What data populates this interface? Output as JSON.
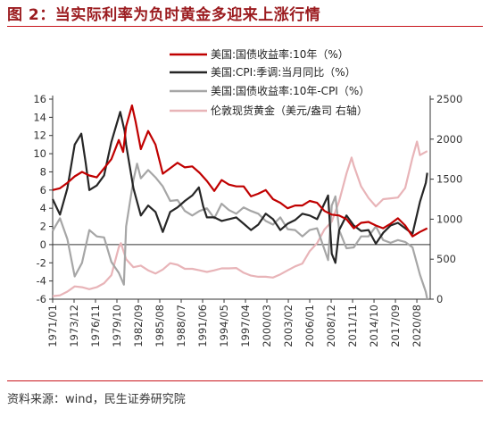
{
  "header": {
    "title": "图 2：当实际利率为负时黄金多迎来上涨行情"
  },
  "footer": {
    "source": "资料来源：wind，民生证券研究院"
  },
  "chart_data": {
    "type": "line",
    "x_tick_labels": [
      "1971/01",
      "1973/12",
      "1976/11",
      "1979/10",
      "1982/09",
      "1985/08",
      "1988/07",
      "1991/06",
      "1994/05",
      "1997/04",
      "2000/03",
      "2003/02",
      "2006/01",
      "2008/12",
      "2011/11",
      "2014/10",
      "2017/09",
      "2020/08"
    ],
    "x_range": [
      1971.0,
      2022.4
    ],
    "left_axis": {
      "ticks": [
        -6,
        -4,
        -2,
        0,
        2,
        4,
        6,
        8,
        10,
        12,
        14,
        16
      ],
      "ylim": [
        -6,
        16
      ]
    },
    "right_axis": {
      "ticks": [
        0,
        500,
        1000,
        1500,
        2000,
        2500
      ],
      "ylim": [
        0,
        2500
      ]
    },
    "legend_placement": "top",
    "series": [
      {
        "name": "美国:国债收益率:10年（%）",
        "axis": "left",
        "color": "#c00000",
        "points": [
          [
            1971.0,
            6.0
          ],
          [
            1972.0,
            6.2
          ],
          [
            1973.0,
            6.8
          ],
          [
            1974.0,
            7.5
          ],
          [
            1975.0,
            8.0
          ],
          [
            1976.0,
            7.6
          ],
          [
            1977.0,
            7.4
          ],
          [
            1978.0,
            8.4
          ],
          [
            1979.0,
            9.4
          ],
          [
            1980.0,
            11.5
          ],
          [
            1980.6,
            10.2
          ],
          [
            1981.0,
            13.0
          ],
          [
            1981.8,
            15.3
          ],
          [
            1982.3,
            13.5
          ],
          [
            1983.0,
            10.5
          ],
          [
            1984.0,
            12.5
          ],
          [
            1985.0,
            11.0
          ],
          [
            1986.0,
            7.8
          ],
          [
            1987.0,
            8.4
          ],
          [
            1988.0,
            9.0
          ],
          [
            1989.0,
            8.5
          ],
          [
            1990.0,
            8.6
          ],
          [
            1991.0,
            7.9
          ],
          [
            1992.0,
            7.0
          ],
          [
            1993.0,
            5.9
          ],
          [
            1994.0,
            7.1
          ],
          [
            1995.0,
            6.6
          ],
          [
            1996.0,
            6.4
          ],
          [
            1997.0,
            6.4
          ],
          [
            1998.0,
            5.3
          ],
          [
            1999.0,
            5.6
          ],
          [
            2000.0,
            6.0
          ],
          [
            2001.0,
            5.0
          ],
          [
            2002.0,
            4.6
          ],
          [
            2003.0,
            4.0
          ],
          [
            2004.0,
            4.3
          ],
          [
            2005.0,
            4.3
          ],
          [
            2006.0,
            4.8
          ],
          [
            2007.0,
            4.6
          ],
          [
            2008.0,
            3.7
          ],
          [
            2009.0,
            3.3
          ],
          [
            2010.0,
            3.2
          ],
          [
            2011.0,
            2.8
          ],
          [
            2012.0,
            1.8
          ],
          [
            2013.0,
            2.4
          ],
          [
            2014.0,
            2.5
          ],
          [
            2015.0,
            2.1
          ],
          [
            2016.0,
            1.8
          ],
          [
            2017.0,
            2.3
          ],
          [
            2018.0,
            2.9
          ],
          [
            2019.0,
            2.1
          ],
          [
            2020.0,
            0.9
          ],
          [
            2021.0,
            1.4
          ],
          [
            2022.0,
            1.8
          ]
        ]
      },
      {
        "name": "美国:CPI:季调:当月同比（%）",
        "axis": "left",
        "color": "#262626",
        "points": [
          [
            1971.0,
            5.0
          ],
          [
            1972.0,
            3.3
          ],
          [
            1973.0,
            6.2
          ],
          [
            1974.0,
            11.0
          ],
          [
            1974.9,
            12.2
          ],
          [
            1975.5,
            9.0
          ],
          [
            1976.0,
            6.0
          ],
          [
            1977.0,
            6.5
          ],
          [
            1978.0,
            7.6
          ],
          [
            1979.0,
            11.3
          ],
          [
            1980.2,
            14.6
          ],
          [
            1980.8,
            12.5
          ],
          [
            1981.0,
            11.0
          ],
          [
            1982.0,
            6.2
          ],
          [
            1983.0,
            3.2
          ],
          [
            1984.0,
            4.3
          ],
          [
            1985.0,
            3.6
          ],
          [
            1986.0,
            1.4
          ],
          [
            1987.0,
            3.6
          ],
          [
            1988.0,
            4.1
          ],
          [
            1989.0,
            4.8
          ],
          [
            1990.0,
            5.4
          ],
          [
            1990.9,
            6.3
          ],
          [
            1991.5,
            4.2
          ],
          [
            1992.0,
            3.0
          ],
          [
            1993.0,
            3.0
          ],
          [
            1994.0,
            2.6
          ],
          [
            1995.0,
            2.8
          ],
          [
            1996.0,
            3.0
          ],
          [
            1997.0,
            2.3
          ],
          [
            1998.0,
            1.6
          ],
          [
            1999.0,
            2.2
          ],
          [
            2000.0,
            3.4
          ],
          [
            2001.0,
            2.8
          ],
          [
            2002.0,
            1.6
          ],
          [
            2003.0,
            2.3
          ],
          [
            2004.0,
            2.7
          ],
          [
            2005.0,
            3.4
          ],
          [
            2006.0,
            3.2
          ],
          [
            2007.0,
            2.8
          ],
          [
            2008.5,
            5.4
          ],
          [
            2009.0,
            -1.0
          ],
          [
            2009.5,
            -2.0
          ],
          [
            2010.0,
            1.6
          ],
          [
            2011.0,
            3.2
          ],
          [
            2012.0,
            2.1
          ],
          [
            2013.0,
            1.5
          ],
          [
            2014.0,
            1.6
          ],
          [
            2015.0,
            0.1
          ],
          [
            2016.0,
            1.3
          ],
          [
            2017.0,
            2.1
          ],
          [
            2018.0,
            2.4
          ],
          [
            2019.0,
            1.8
          ],
          [
            2020.0,
            1.2
          ],
          [
            2021.0,
            4.7
          ],
          [
            2021.8,
            6.8
          ],
          [
            2022.0,
            7.9
          ]
        ]
      },
      {
        "name": "美国:国债收益率:10年-CPI（%）",
        "axis": "left",
        "color": "#a6a6a6",
        "points": [
          [
            1971.0,
            1.5
          ],
          [
            1972.0,
            2.9
          ],
          [
            1973.0,
            0.6
          ],
          [
            1974.0,
            -3.5
          ],
          [
            1975.0,
            -2.0
          ],
          [
            1976.0,
            1.6
          ],
          [
            1977.0,
            0.9
          ],
          [
            1978.0,
            0.8
          ],
          [
            1979.0,
            -1.9
          ],
          [
            1980.0,
            -3.1
          ],
          [
            1980.7,
            -4.4
          ],
          [
            1981.0,
            2.0
          ],
          [
            1982.0,
            7.1
          ],
          [
            1982.5,
            8.9
          ],
          [
            1983.0,
            7.3
          ],
          [
            1984.0,
            8.2
          ],
          [
            1985.0,
            7.4
          ],
          [
            1986.0,
            6.4
          ],
          [
            1987.0,
            4.8
          ],
          [
            1988.0,
            4.9
          ],
          [
            1989.0,
            3.7
          ],
          [
            1990.0,
            3.2
          ],
          [
            1991.0,
            3.7
          ],
          [
            1992.0,
            4.0
          ],
          [
            1993.0,
            2.9
          ],
          [
            1994.0,
            4.5
          ],
          [
            1995.0,
            3.8
          ],
          [
            1996.0,
            3.4
          ],
          [
            1997.0,
            4.1
          ],
          [
            1998.0,
            3.7
          ],
          [
            1999.0,
            3.4
          ],
          [
            2000.0,
            2.6
          ],
          [
            2001.0,
            2.2
          ],
          [
            2002.0,
            3.0
          ],
          [
            2003.0,
            1.7
          ],
          [
            2004.0,
            1.6
          ],
          [
            2005.0,
            0.9
          ],
          [
            2006.0,
            1.6
          ],
          [
            2007.0,
            1.8
          ],
          [
            2008.5,
            -1.7
          ],
          [
            2009.0,
            4.3
          ],
          [
            2009.5,
            5.3
          ],
          [
            2010.0,
            1.6
          ],
          [
            2011.0,
            -0.4
          ],
          [
            2012.0,
            -0.3
          ],
          [
            2013.0,
            0.9
          ],
          [
            2014.0,
            0.9
          ],
          [
            2015.0,
            2.0
          ],
          [
            2016.0,
            0.5
          ],
          [
            2017.0,
            0.2
          ],
          [
            2018.0,
            0.5
          ],
          [
            2019.0,
            0.3
          ],
          [
            2020.0,
            -0.3
          ],
          [
            2021.0,
            -3.3
          ],
          [
            2021.8,
            -5.2
          ],
          [
            2022.0,
            -6.0
          ]
        ]
      },
      {
        "name": "伦敦现货黄金（美元/盎司 右轴）",
        "axis": "right",
        "color": "#e8b4b8",
        "points": [
          [
            1971.0,
            38
          ],
          [
            1972.0,
            48
          ],
          [
            1973.0,
            95
          ],
          [
            1974.0,
            160
          ],
          [
            1975.0,
            150
          ],
          [
            1976.0,
            125
          ],
          [
            1977.0,
            150
          ],
          [
            1978.0,
            200
          ],
          [
            1979.0,
            300
          ],
          [
            1980.0,
            650
          ],
          [
            1980.3,
            700
          ],
          [
            1981.0,
            500
          ],
          [
            1982.0,
            400
          ],
          [
            1983.0,
            420
          ],
          [
            1984.0,
            360
          ],
          [
            1985.0,
            320
          ],
          [
            1986.0,
            370
          ],
          [
            1987.0,
            450
          ],
          [
            1988.0,
            430
          ],
          [
            1989.0,
            380
          ],
          [
            1990.0,
            380
          ],
          [
            1991.0,
            360
          ],
          [
            1992.0,
            340
          ],
          [
            1993.0,
            360
          ],
          [
            1994.0,
            385
          ],
          [
            1995.0,
            385
          ],
          [
            1996.0,
            390
          ],
          [
            1997.0,
            330
          ],
          [
            1998.0,
            295
          ],
          [
            1999.0,
            280
          ],
          [
            2000.0,
            280
          ],
          [
            2001.0,
            270
          ],
          [
            2002.0,
            310
          ],
          [
            2003.0,
            360
          ],
          [
            2004.0,
            410
          ],
          [
            2005.0,
            445
          ],
          [
            2006.0,
            600
          ],
          [
            2007.0,
            700
          ],
          [
            2008.0,
            870
          ],
          [
            2009.0,
            970
          ],
          [
            2010.0,
            1225
          ],
          [
            2011.0,
            1570
          ],
          [
            2011.7,
            1770
          ],
          [
            2012.0,
            1670
          ],
          [
            2013.0,
            1410
          ],
          [
            2014.0,
            1265
          ],
          [
            2015.0,
            1160
          ],
          [
            2016.0,
            1250
          ],
          [
            2017.0,
            1260
          ],
          [
            2018.0,
            1270
          ],
          [
            2019.0,
            1390
          ],
          [
            2020.0,
            1770
          ],
          [
            2020.6,
            1970
          ],
          [
            2021.0,
            1800
          ],
          [
            2022.0,
            1850
          ]
        ]
      }
    ]
  }
}
